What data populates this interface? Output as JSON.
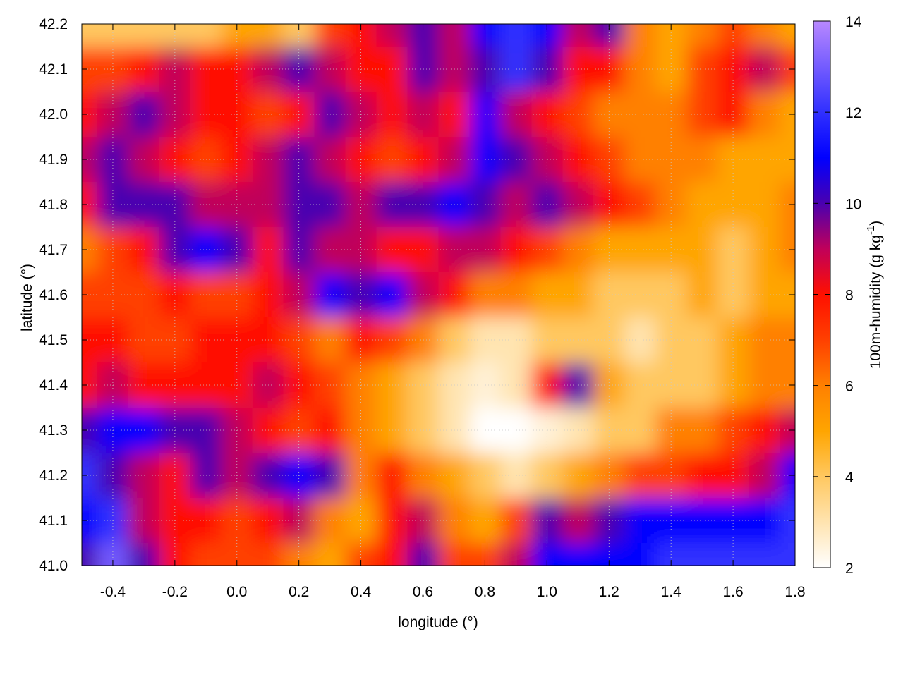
{
  "chart_data": {
    "type": "heatmap",
    "xlabel": "longitude (°)",
    "ylabel": "latitude (°)",
    "colorbar_label": {
      "main": "100m-humidity (g kg",
      "sup": "-1",
      "close": ")"
    },
    "xlim": [
      -0.5,
      1.8
    ],
    "ylim": [
      41.0,
      42.2
    ],
    "zlim": [
      2,
      14
    ],
    "x_ticks": [
      "-0.4",
      "-0.2",
      "0.0",
      "0.2",
      "0.4",
      "0.6",
      "0.8",
      "1.0",
      "1.2",
      "1.4",
      "1.6",
      "1.8"
    ],
    "y_ticks": [
      "41.0",
      "41.1",
      "41.2",
      "41.3",
      "41.4",
      "41.5",
      "41.6",
      "41.7",
      "41.8",
      "41.9",
      "42.0",
      "42.1",
      "42.2"
    ],
    "colorbar_ticks": [
      "2",
      "4",
      "6",
      "8",
      "10",
      "12",
      "14"
    ],
    "grid": true,
    "colormap": [
      {
        "v": 2,
        "c": "#ffffff"
      },
      {
        "v": 4,
        "c": "#ffc860"
      },
      {
        "v": 5,
        "c": "#ffa500"
      },
      {
        "v": 6,
        "c": "#ff8000"
      },
      {
        "v": 7,
        "c": "#ff4000"
      },
      {
        "v": 8,
        "c": "#ff1000"
      },
      {
        "v": 9,
        "c": "#c0005a"
      },
      {
        "v": 10,
        "c": "#4a00b0"
      },
      {
        "v": 11,
        "c": "#0000ff"
      },
      {
        "v": 12,
        "c": "#3030ff"
      },
      {
        "v": 14,
        "c": "#b888ff"
      }
    ],
    "x": [
      -0.5,
      -0.4,
      -0.3,
      -0.2,
      -0.1,
      0.0,
      0.1,
      0.2,
      0.3,
      0.4,
      0.5,
      0.6,
      0.7,
      0.8,
      0.9,
      1.0,
      1.1,
      1.2,
      1.3,
      1.4,
      1.5,
      1.6,
      1.7,
      1.8
    ],
    "y": [
      42.2,
      42.1,
      42.0,
      41.9,
      41.8,
      41.7,
      41.6,
      41.5,
      41.4,
      41.3,
      41.2,
      41.1,
      41.0
    ],
    "z": [
      [
        4,
        4,
        4,
        4,
        4,
        5,
        5,
        4,
        7,
        8,
        9,
        10,
        9,
        11,
        12,
        11,
        9,
        10,
        6,
        5,
        6,
        7,
        6,
        5
      ],
      [
        7,
        7,
        8,
        9,
        8,
        8,
        9,
        10,
        9,
        8,
        8,
        10,
        9,
        10,
        12,
        10,
        8,
        8,
        6,
        5,
        7,
        8,
        9,
        7
      ],
      [
        8,
        9,
        10,
        9,
        8,
        8,
        7,
        8,
        10,
        9,
        8,
        9,
        8,
        11,
        9,
        8,
        7,
        6,
        6,
        6,
        7,
        8,
        6,
        5
      ],
      [
        9,
        10,
        9,
        8,
        7,
        8,
        9,
        10,
        9,
        8,
        7,
        8,
        9,
        11,
        10,
        9,
        8,
        7,
        6,
        6,
        6,
        5,
        5,
        5
      ],
      [
        8,
        10,
        10,
        10,
        9,
        9,
        9,
        10,
        10,
        9,
        10,
        10,
        11,
        10,
        9,
        10,
        9,
        8,
        7,
        6,
        5,
        5,
        5,
        6
      ],
      [
        6,
        7,
        8,
        10,
        11,
        10,
        8,
        10,
        9,
        9,
        8,
        8,
        9,
        9,
        8,
        7,
        6,
        5,
        5,
        5,
        5,
        4,
        5,
        6
      ],
      [
        7,
        7,
        7,
        8,
        7,
        7,
        8,
        9,
        11,
        10,
        11,
        9,
        8,
        6,
        6,
        5,
        5,
        4,
        4,
        4,
        5,
        4,
        5,
        5
      ],
      [
        8,
        8,
        7,
        7,
        8,
        8,
        8,
        7,
        6,
        8,
        7,
        6,
        4,
        3,
        3,
        4,
        4,
        4,
        3,
        4,
        4,
        5,
        6,
        6
      ],
      [
        8,
        9,
        8,
        8,
        8,
        8,
        9,
        8,
        7,
        6,
        5,
        4,
        3,
        2.5,
        3,
        8,
        10,
        5,
        4,
        4,
        4,
        5,
        6,
        6
      ],
      [
        10,
        11,
        11,
        10,
        10,
        9,
        8,
        7,
        8,
        6,
        5,
        4,
        3,
        2,
        2,
        2.5,
        3,
        4,
        4,
        6,
        6,
        7,
        8,
        9
      ],
      [
        12,
        10,
        9,
        8,
        10,
        9,
        10,
        11,
        10,
        6,
        8,
        6,
        5,
        4,
        3,
        4,
        5,
        6,
        7,
        7,
        8,
        8,
        9,
        11
      ],
      [
        11,
        12,
        9,
        8,
        8,
        7,
        8,
        9,
        6,
        5,
        8,
        9,
        6,
        5,
        7,
        10,
        9,
        10,
        11,
        11,
        11,
        11,
        11,
        12
      ],
      [
        10,
        13,
        10,
        8,
        7,
        7,
        7,
        6,
        5,
        7,
        8,
        10,
        7,
        7,
        9,
        11,
        11,
        11,
        11,
        12,
        12,
        12,
        12,
        12
      ]
    ]
  }
}
